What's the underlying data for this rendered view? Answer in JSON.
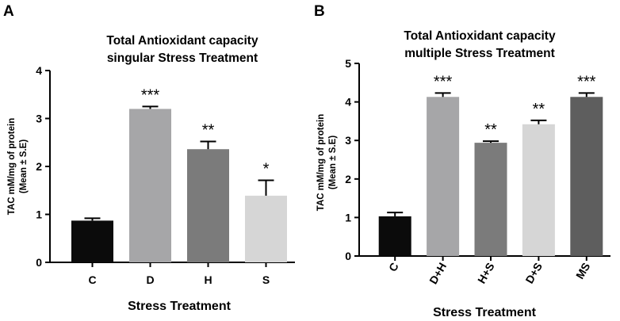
{
  "colors": {
    "C": "#0b0b0b",
    "D": "#a6a6a8",
    "H": "#7b7b7b",
    "S": "#d6d6d6",
    "D+H": "#a6a6a8",
    "H+S": "#7b7b7b",
    "D+S": "#d6d6d6",
    "MS": "#5e5e5e"
  },
  "chart_data": [
    {
      "type": "bar",
      "panel": "A",
      "title": [
        "Total Antioxidant capacity",
        "singular Stress Treatment"
      ],
      "xlabel": "Stress Treatment",
      "ylabel": [
        "TAC mM/mg of protein",
        "(Mean ± S.E)"
      ],
      "ylim": [
        0,
        4
      ],
      "yticks": [
        "0",
        "1",
        "2",
        "3",
        "4"
      ],
      "categories": [
        "C",
        "D",
        "H",
        "S"
      ],
      "values": [
        0.87,
        3.2,
        2.36,
        1.39
      ],
      "errors": [
        0.05,
        0.05,
        0.16,
        0.32
      ],
      "significance": [
        "",
        "***",
        "**",
        "*"
      ],
      "grid": false
    },
    {
      "type": "bar",
      "panel": "B",
      "title": [
        "Total Antioxidant capacity",
        "multiple Stress Treatment"
      ],
      "xlabel": "Stress Treatment",
      "ylabel": [
        "TAC mM/mg of protein",
        "(Mean ± S.E)"
      ],
      "ylim": [
        0,
        5
      ],
      "yticks": [
        "0",
        "1",
        "2",
        "3",
        "4",
        "5"
      ],
      "categories": [
        "C",
        "D+H",
        "H+S",
        "D+S",
        "MS"
      ],
      "values": [
        1.03,
        4.13,
        2.94,
        3.42,
        4.13
      ],
      "errors": [
        0.1,
        0.1,
        0.04,
        0.1,
        0.1
      ],
      "significance": [
        "",
        "***",
        "**",
        "**",
        "***"
      ],
      "grid": false
    }
  ]
}
